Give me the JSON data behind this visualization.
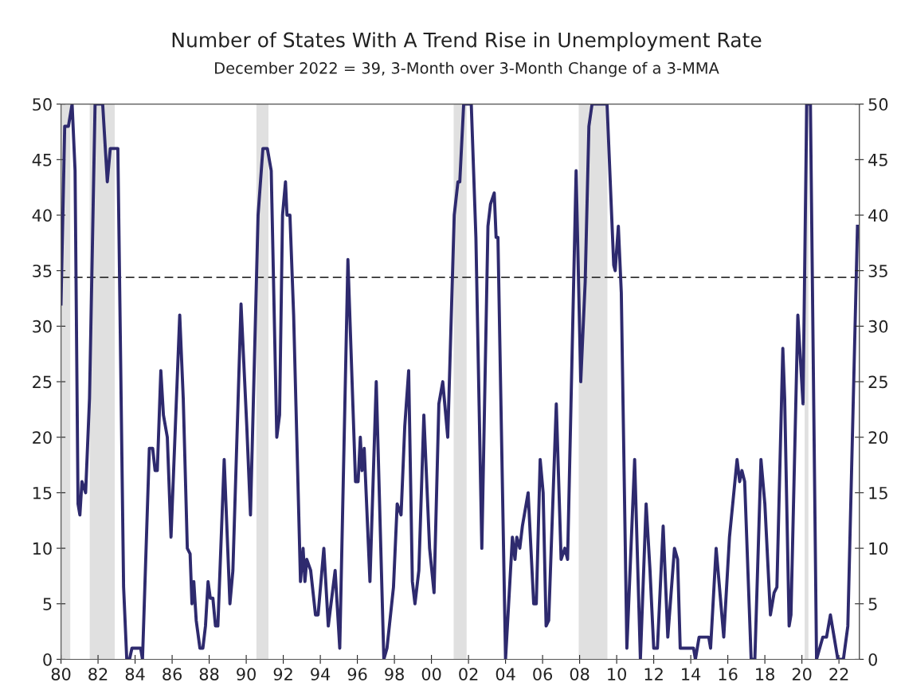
{
  "chart_data": {
    "type": "line",
    "title": "Number of States With A Trend Rise in Unemployment Rate",
    "subtitle": "December 2022 = 39, 3-Month over 3-Month Change of a 3-MMA",
    "series": [
      {
        "color": "#2e2a6e",
        "x": [
          1980.0,
          1980.2,
          1980.4,
          1980.6,
          1980.76,
          1980.92,
          1981.02,
          1981.13,
          1981.33,
          1981.54,
          1981.84,
          1982.25,
          1982.5,
          1982.66,
          1982.87,
          1983.07,
          1983.38,
          1983.55,
          1983.7,
          1983.83,
          1984.3,
          1984.4,
          1984.77,
          1984.95,
          1985.08,
          1985.2,
          1985.39,
          1985.53,
          1985.74,
          1985.94,
          1986.41,
          1986.6,
          1986.82,
          1986.97,
          1987.07,
          1987.17,
          1987.3,
          1987.5,
          1987.66,
          1987.8,
          1987.94,
          1988.06,
          1988.2,
          1988.34,
          1988.47,
          1988.81,
          1989.12,
          1989.28,
          1989.72,
          1990.03,
          1990.23,
          1990.64,
          1990.9,
          1991.14,
          1991.35,
          1991.65,
          1991.8,
          1991.96,
          1992.12,
          1992.2,
          1992.36,
          1992.56,
          1992.93,
          1993.07,
          1993.17,
          1993.27,
          1993.48,
          1993.74,
          1993.88,
          1994.19,
          1994.43,
          1994.8,
          1995.05,
          1995.49,
          1995.9,
          1996.04,
          1996.16,
          1996.25,
          1996.37,
          1996.68,
          1997.02,
          1997.43,
          1997.6,
          1997.95,
          1998.15,
          1998.36,
          1998.56,
          1998.77,
          1998.97,
          1999.11,
          1999.32,
          1999.59,
          1999.9,
          2000.14,
          2000.4,
          2000.61,
          2000.88,
          2001.23,
          2001.43,
          2001.53,
          2001.74,
          2002.15,
          2002.4,
          2002.72,
          2003.05,
          2003.19,
          2003.39,
          2003.49,
          2003.59,
          2004.0,
          2004.37,
          2004.51,
          2004.61,
          2004.77,
          2004.91,
          2005.22,
          2005.52,
          2005.66,
          2005.87,
          2006.03,
          2006.19,
          2006.33,
          2006.74,
          2007.0,
          2007.2,
          2007.35,
          2007.81,
          2008.06,
          2008.3,
          2008.5,
          2008.67,
          2009.48,
          2009.84,
          2009.92,
          2010.09,
          2010.25,
          2010.55,
          2010.97,
          2011.28,
          2011.59,
          2011.8,
          2012.0,
          2012.2,
          2012.51,
          2012.76,
          2013.12,
          2013.29,
          2013.43,
          2014.15,
          2014.25,
          2014.45,
          2014.97,
          2015.07,
          2015.37,
          2015.78,
          2016.09,
          2016.5,
          2016.64,
          2016.76,
          2016.91,
          2017.26,
          2017.46,
          2017.79,
          2018.0,
          2018.3,
          2018.5,
          2018.65,
          2018.97,
          2019.07,
          2019.31,
          2019.41,
          2019.78,
          2020.06,
          2020.26,
          2020.46,
          2020.79,
          2021.13,
          2021.33,
          2021.54,
          2021.74,
          2021.94,
          2022.24,
          2022.48,
          2023.0
        ],
        "values": [
          32,
          48,
          48,
          50,
          44,
          14,
          13,
          16,
          15,
          23.5,
          50,
          50,
          43,
          46,
          46,
          46,
          6.5,
          0,
          0,
          1,
          1,
          0,
          19,
          19,
          17,
          17,
          26,
          22,
          20,
          11,
          31,
          23.5,
          10,
          9.5,
          5,
          7,
          3.5,
          1,
          1,
          3,
          7,
          5.5,
          5.5,
          3,
          3,
          18,
          5,
          8,
          32,
          21,
          13,
          40,
          46,
          46,
          44,
          20,
          22,
          40,
          43,
          40,
          40,
          31,
          7,
          10,
          7,
          9,
          8,
          4,
          4,
          10,
          3,
          8,
          1,
          36,
          16,
          16,
          20,
          17,
          19,
          7,
          25,
          0,
          1,
          6.5,
          14,
          13,
          21,
          26,
          7,
          5,
          8,
          22,
          10,
          6,
          23,
          25,
          20,
          40,
          43,
          43,
          50,
          50,
          38,
          10,
          39,
          41,
          42,
          38,
          38,
          0,
          11,
          9,
          11,
          10,
          12,
          15,
          5,
          5,
          18,
          15,
          3,
          3.5,
          23,
          9,
          10,
          9,
          44,
          25,
          34,
          48,
          50,
          50,
          35.5,
          35,
          39,
          33,
          1,
          18,
          0,
          14,
          8,
          1,
          1,
          12,
          2,
          10,
          9,
          1,
          1,
          0,
          2,
          2,
          1,
          10,
          2,
          11,
          18,
          16,
          17,
          16,
          0,
          0,
          18,
          14,
          4,
          6,
          6.5,
          28,
          23.5,
          3,
          4,
          31,
          23,
          50,
          50,
          0,
          2,
          2,
          4,
          2,
          0,
          0,
          3,
          39
        ]
      }
    ],
    "xlim": [
      1980,
      2023.1
    ],
    "xticks": [
      {
        "value": 1980,
        "label": "80"
      },
      {
        "value": 1982,
        "label": "82"
      },
      {
        "value": 1984,
        "label": "84"
      },
      {
        "value": 1986,
        "label": "86"
      },
      {
        "value": 1988,
        "label": "88"
      },
      {
        "value": 1990,
        "label": "90"
      },
      {
        "value": 1992,
        "label": "92"
      },
      {
        "value": 1994,
        "label": "94"
      },
      {
        "value": 1996,
        "label": "96"
      },
      {
        "value": 1998,
        "label": "98"
      },
      {
        "value": 2000,
        "label": "00"
      },
      {
        "value": 2002,
        "label": "02"
      },
      {
        "value": 2004,
        "label": "04"
      },
      {
        "value": 2006,
        "label": "06"
      },
      {
        "value": 2008,
        "label": "08"
      },
      {
        "value": 2010,
        "label": "10"
      },
      {
        "value": 2012,
        "label": "12"
      },
      {
        "value": 2014,
        "label": "14"
      },
      {
        "value": 2016,
        "label": "16"
      },
      {
        "value": 2018,
        "label": "18"
      },
      {
        "value": 2020,
        "label": "20"
      },
      {
        "value": 2022,
        "label": "22"
      }
    ],
    "ylim": [
      0,
      50
    ],
    "yticks": [
      0,
      5,
      10,
      15,
      20,
      25,
      30,
      35,
      40,
      45,
      50
    ],
    "y2lim": [
      0,
      50
    ],
    "y2ticks": [
      0,
      5,
      10,
      15,
      20,
      25,
      30,
      35,
      40,
      45,
      50
    ],
    "ref_lines": [
      {
        "axis": "y",
        "value": 34.4,
        "color": "#333333",
        "line_style": "dashed"
      }
    ],
    "bands": [
      {
        "axis": "x",
        "from": 1980.0,
        "to": 1980.5,
        "color": "#e0e0e0"
      },
      {
        "axis": "x",
        "from": 1981.55,
        "to": 1982.9,
        "color": "#e0e0e0"
      },
      {
        "axis": "x",
        "from": 1990.55,
        "to": 1991.2,
        "color": "#e0e0e0"
      },
      {
        "axis": "x",
        "from": 2001.2,
        "to": 2001.9,
        "color": "#e0e0e0"
      },
      {
        "axis": "x",
        "from": 2007.95,
        "to": 2009.5,
        "color": "#e0e0e0"
      },
      {
        "axis": "x",
        "from": 2020.15,
        "to": 2020.35,
        "color": "#e0e0e0"
      }
    ],
    "grid": false,
    "legend": false,
    "line_style": "solid",
    "marker": "none"
  }
}
